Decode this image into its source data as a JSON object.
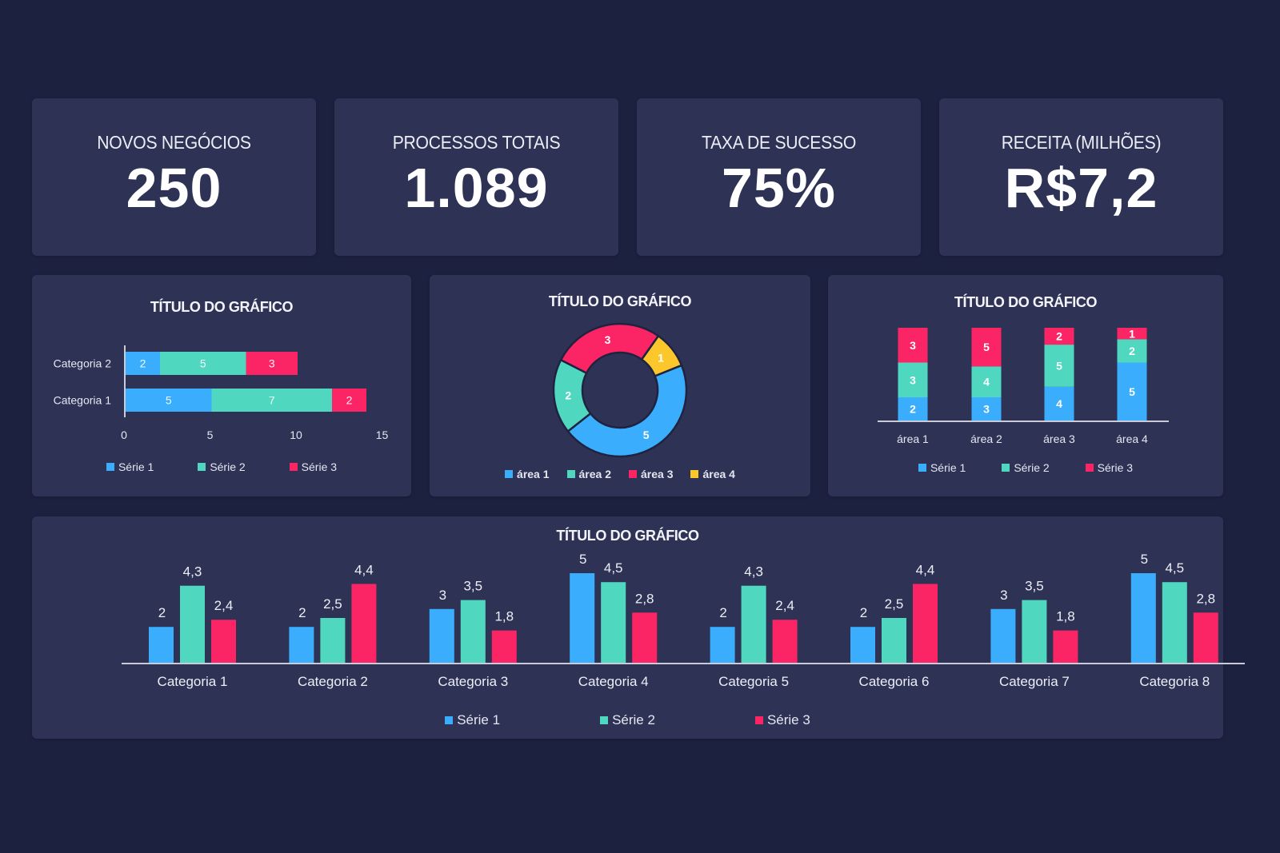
{
  "colors": {
    "background": "#1d2140",
    "card": "#2e3356",
    "serie1": "#3aaefc",
    "serie2": "#4fd8bf",
    "serie3": "#fb2464",
    "serie4": "#fbc72a",
    "axis": "#c9ccd8"
  },
  "kpis": [
    {
      "label": "NOVOS NEGÓCIOS",
      "value": "250"
    },
    {
      "label": "PROCESSOS TOTAIS",
      "value": "1.089"
    },
    {
      "label": "TAXA DE SUCESSO",
      "value": "75%"
    },
    {
      "label": "RECEITA (MILHÕES)",
      "value": "R$7,2"
    }
  ],
  "chart_data": [
    {
      "id": "hbar",
      "type": "bar",
      "orientation": "horizontal",
      "stacked": true,
      "title": "TÍTULO DO GRÁFICO",
      "categories": [
        "Categoria 1",
        "Categoria 2"
      ],
      "series": [
        {
          "name": "Série 1",
          "values": [
            5,
            2
          ]
        },
        {
          "name": "Série 2",
          "values": [
            7,
            5
          ]
        },
        {
          "name": "Série 3",
          "values": [
            2,
            3
          ]
        }
      ],
      "xlim": [
        0,
        15
      ],
      "xticks": [
        "0",
        "5",
        "10",
        "15"
      ],
      "grid": false,
      "legend": "bottom"
    },
    {
      "id": "donut",
      "type": "pie",
      "donut": true,
      "title": "TÍTULO DO GRÁFICO",
      "categories": [
        "área 1",
        "área 2",
        "área 3",
        "área 4"
      ],
      "values": [
        5,
        2,
        3,
        1
      ],
      "legend": "bottom"
    },
    {
      "id": "stacked100",
      "type": "bar",
      "orientation": "vertical",
      "stacked": "percent",
      "title": "TÍTULO DO GRÁFICO",
      "categories": [
        "área 1",
        "área 2",
        "área 3",
        "área 4"
      ],
      "series": [
        {
          "name": "Série 1",
          "values": [
            2,
            3,
            4,
            5
          ]
        },
        {
          "name": "Série 2",
          "values": [
            3,
            4,
            5,
            2
          ]
        },
        {
          "name": "Série 3",
          "values": [
            3,
            5,
            2,
            1
          ]
        }
      ],
      "grid": false,
      "legend": "bottom"
    },
    {
      "id": "columns",
      "type": "bar",
      "orientation": "vertical",
      "stacked": false,
      "title": "TÍTULO DO GRÁFICO",
      "categories": [
        "Categoria 1",
        "Categoria 2",
        "Categoria 3",
        "Categoria 4",
        "Categoria 5",
        "Categoria 6",
        "Categoria 7",
        "Categoria 8"
      ],
      "series": [
        {
          "name": "Série 1",
          "values": [
            2,
            2,
            3,
            5,
            2,
            2,
            3,
            5
          ]
        },
        {
          "name": "Série 2",
          "values": [
            4.3,
            2.5,
            3.5,
            4.5,
            4.3,
            2.5,
            3.5,
            4.5
          ]
        },
        {
          "name": "Série 3",
          "values": [
            2.4,
            4.4,
            1.8,
            2.8,
            2.4,
            4.4,
            1.8,
            2.8
          ]
        }
      ],
      "ylim": [
        0,
        5
      ],
      "grid": false,
      "legend": "bottom",
      "decimal_separator": ","
    }
  ]
}
